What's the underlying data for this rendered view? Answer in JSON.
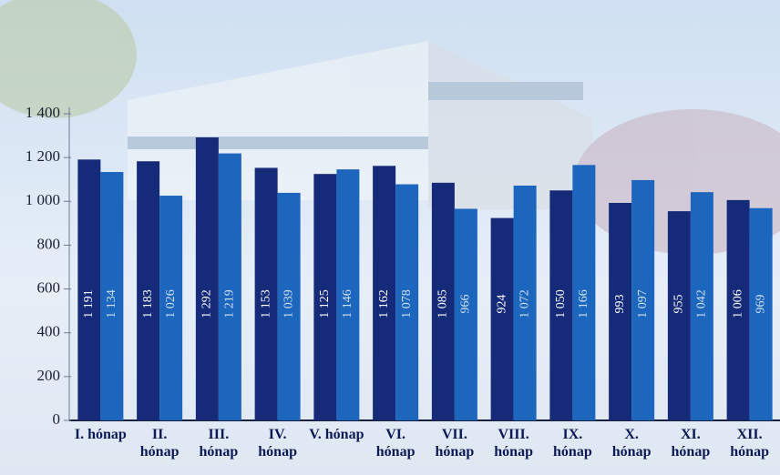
{
  "chart_data": {
    "type": "bar",
    "categories": [
      "I. hónap",
      "II. hónap",
      "III. hónap",
      "IV. hónap",
      "V. hónap",
      "VI. hónap",
      "VII. hónap",
      "VIII. hónap",
      "IX. hónap",
      "X. hónap",
      "XI. hónap",
      "XII. hónap"
    ],
    "series": [
      {
        "color": "#152a78",
        "values": [
          1191,
          1183,
          1292,
          1153,
          1125,
          1162,
          1085,
          924,
          1050,
          993,
          955,
          1006
        ],
        "value_labels": [
          "1 191",
          "1 183",
          "1 292",
          "1 153",
          "1 125",
          "1 162",
          "1 085",
          "924",
          "1 050",
          "993",
          "955",
          "1 006"
        ]
      },
      {
        "color": "#1c66bd",
        "values": [
          1134,
          1026,
          1219,
          1039,
          1146,
          1078,
          966,
          1072,
          1166,
          1097,
          1042,
          969
        ],
        "value_labels": [
          "1 134",
          "1 026",
          "1 219",
          "1 039",
          "1 146",
          "1 078",
          "966",
          "1 072",
          "1 166",
          "1 097",
          "1 042",
          "969"
        ]
      }
    ],
    "ylim": [
      0,
      1400
    ],
    "yticks": [
      0,
      200,
      400,
      600,
      800,
      {
        "value": 1000,
        "label": "1 000"
      },
      {
        "value": 1200,
        "label": "1 200"
      },
      {
        "value": 1400,
        "label": "1 400"
      }
    ]
  }
}
